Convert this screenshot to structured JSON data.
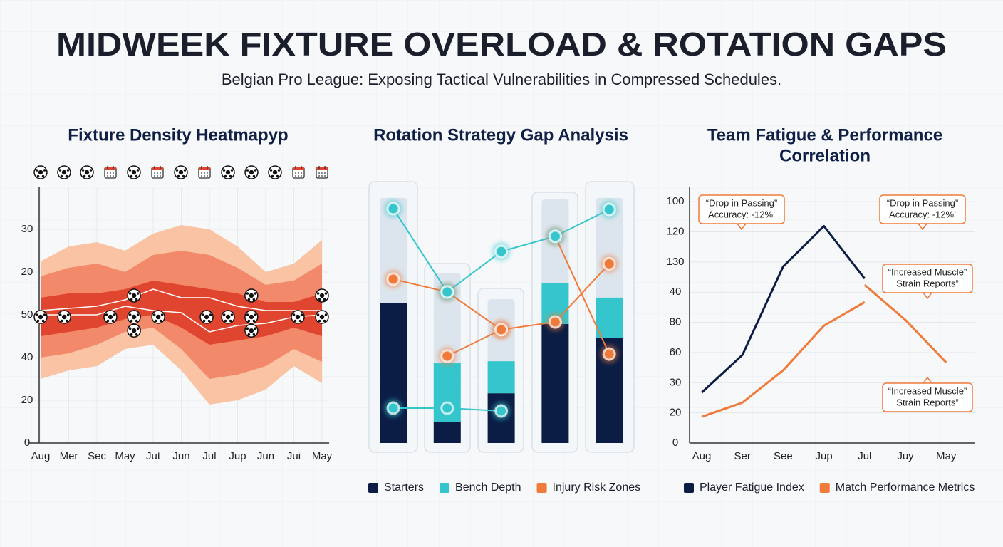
{
  "header": {
    "title": "MIDWEEK FIXTURE OVERLOAD & ROTATION GAPS",
    "subtitle": "Belgian Pro League: Exposing Tactical Vulnerabilities in Compressed Schedules."
  },
  "chart_data": [
    {
      "type": "band",
      "title": "Fixture Density Heatmapyp",
      "categories": [
        "Aug",
        "Mer",
        "Sec",
        "May",
        "Jut",
        "Jun",
        "Jul",
        "Jup",
        "Jun",
        "Jui",
        "May"
      ],
      "ylim": [
        0,
        6
      ],
      "yticks": [
        {
          "value": 0,
          "label": "0"
        },
        {
          "value": 1,
          "label": "20"
        },
        {
          "value": 2,
          "label": "40"
        },
        {
          "value": 3,
          "label": "50"
        },
        {
          "value": 4,
          "label": "20"
        },
        {
          "value": 5,
          "label": "30"
        }
      ],
      "grid": true,
      "bands": [
        {
          "color": "#f9c3a4",
          "upper": [
            4.25,
            4.6,
            4.7,
            4.5,
            4.9,
            5.1,
            5.0,
            4.6,
            4.0,
            4.2,
            4.75
          ],
          "lower": [
            1.5,
            1.7,
            1.8,
            2.2,
            2.3,
            1.7,
            0.9,
            1.0,
            1.25,
            1.8,
            1.4
          ]
        },
        {
          "color": "#f2896a",
          "upper": [
            3.9,
            4.1,
            4.2,
            4.0,
            4.4,
            4.5,
            4.4,
            4.1,
            3.7,
            3.8,
            4.2
          ],
          "lower": [
            2.0,
            2.1,
            2.3,
            2.6,
            2.7,
            2.2,
            1.5,
            1.6,
            1.8,
            2.2,
            1.9
          ]
        },
        {
          "color": "#e0452f",
          "upper": [
            3.4,
            3.5,
            3.5,
            3.6,
            3.8,
            3.7,
            3.6,
            3.5,
            3.3,
            3.3,
            3.5
          ],
          "lower": [
            2.5,
            2.6,
            2.7,
            2.9,
            3.0,
            2.7,
            2.3,
            2.4,
            2.5,
            2.7,
            2.5
          ]
        }
      ],
      "lines": [
        {
          "color": "#ffffff",
          "values": [
            3.1,
            3.15,
            3.2,
            3.35,
            3.6,
            3.4,
            3.4,
            3.2,
            3.1,
            3.1,
            3.1
          ]
        },
        {
          "color": "#ffffff",
          "values": [
            3.0,
            3.0,
            3.0,
            3.2,
            3.1,
            3.05,
            2.6,
            2.75,
            2.8,
            2.95,
            3.0
          ]
        }
      ],
      "markers": {
        "x": [
          0,
          0.84,
          2.48,
          3.32,
          3.32,
          3.32,
          4.18,
          5.9,
          6.66,
          7.49,
          7.49,
          7.49,
          9.14,
          10,
          10
        ],
        "y": [
          2.95,
          2.95,
          2.95,
          3.45,
          2.95,
          2.63,
          2.95,
          2.95,
          2.95,
          3.45,
          2.95,
          2.63,
          2.95,
          3.45,
          2.95
        ]
      }
    },
    {
      "type": "bar",
      "title": "Rotation Strategy Gap Analysis",
      "categories": [
        null,
        null,
        null,
        null,
        null
      ],
      "ylim": [
        0,
        100
      ],
      "background": {
        "color": "#dce5ed",
        "values": [
          95.6,
          66.4,
          56.1,
          95.0,
          95.6
        ]
      },
      "series": [
        {
          "name": "Starters",
          "color": "#0b1d45",
          "values": [
            54.7,
            8.1,
            19.4,
            46.4,
            41.1
          ]
        },
        {
          "name": "Bench Depth",
          "color": "#34c6cc",
          "values": [
            0,
            23.0,
            12.5,
            16.1,
            15.6
          ]
        }
      ],
      "lines": [
        {
          "name": "Injury Risk Zones",
          "color": "#f07a3a",
          "values": [
            63.9,
            58.9,
            44.2,
            47.2,
            69.9
          ]
        },
        {
          "color": "#f07a3a",
          "values": [
            null,
            33.9,
            44.2,
            null,
            null
          ]
        },
        {
          "color": "#f07a3a",
          "values": [
            null,
            null,
            null,
            80.6,
            34.7
          ]
        },
        {
          "color": "#34c6cc",
          "values": [
            91.4,
            58.9,
            74.7,
            80.6,
            91.1
          ]
        },
        {
          "color": "#34c6cc",
          "values": [
            13.6,
            13.6,
            12.5,
            null,
            null
          ]
        }
      ]
    },
    {
      "type": "line",
      "title": [
        "Team Fatigue & Performance",
        "Correlation"
      ],
      "categories": [
        "Aug",
        "Ser",
        "See",
        "Jup",
        "Jul",
        "Juy",
        "May"
      ],
      "ylim": [
        0,
        8.5
      ],
      "yticks": [
        {
          "value": 0,
          "label": "0"
        },
        {
          "value": 1,
          "label": "20"
        },
        {
          "value": 2,
          "label": "30"
        },
        {
          "value": 3,
          "label": "60"
        },
        {
          "value": 4,
          "label": "80"
        },
        {
          "value": 5,
          "label": "40"
        },
        {
          "value": 6,
          "label": "130"
        },
        {
          "value": 7,
          "label": "120"
        },
        {
          "value": 8,
          "label": "100"
        }
      ],
      "grid": true,
      "series": [
        {
          "name": "Player Fatigue Index",
          "color": "#0b1d45",
          "values": [
            1.67,
            2.92,
            5.85,
            7.19,
            5.45,
            null,
            null
          ]
        },
        {
          "name": "Match Performance Metrics",
          "color": "#f07a3a",
          "values": [
            0.87,
            1.34,
            2.41,
            3.89,
            4.67,
            null,
            null
          ]
        },
        {
          "color": "#f07a3a",
          "values": [
            null,
            null,
            null,
            null,
            5.24,
            4.08,
            2.67
          ]
        }
      ],
      "annotations": [
        {
          "lines": [
            "“Drop in Passing”",
            "Accuracy: -12%’"
          ]
        },
        {
          "lines": [
            "“Drop in Passing”",
            "Accuracy: -12%’"
          ]
        },
        {
          "lines": [
            "“Increased Muscle”",
            "Strain Reports”"
          ]
        },
        {
          "lines": [
            "“Increased Muscle”",
            "Strain Reports”"
          ]
        }
      ]
    }
  ]
}
